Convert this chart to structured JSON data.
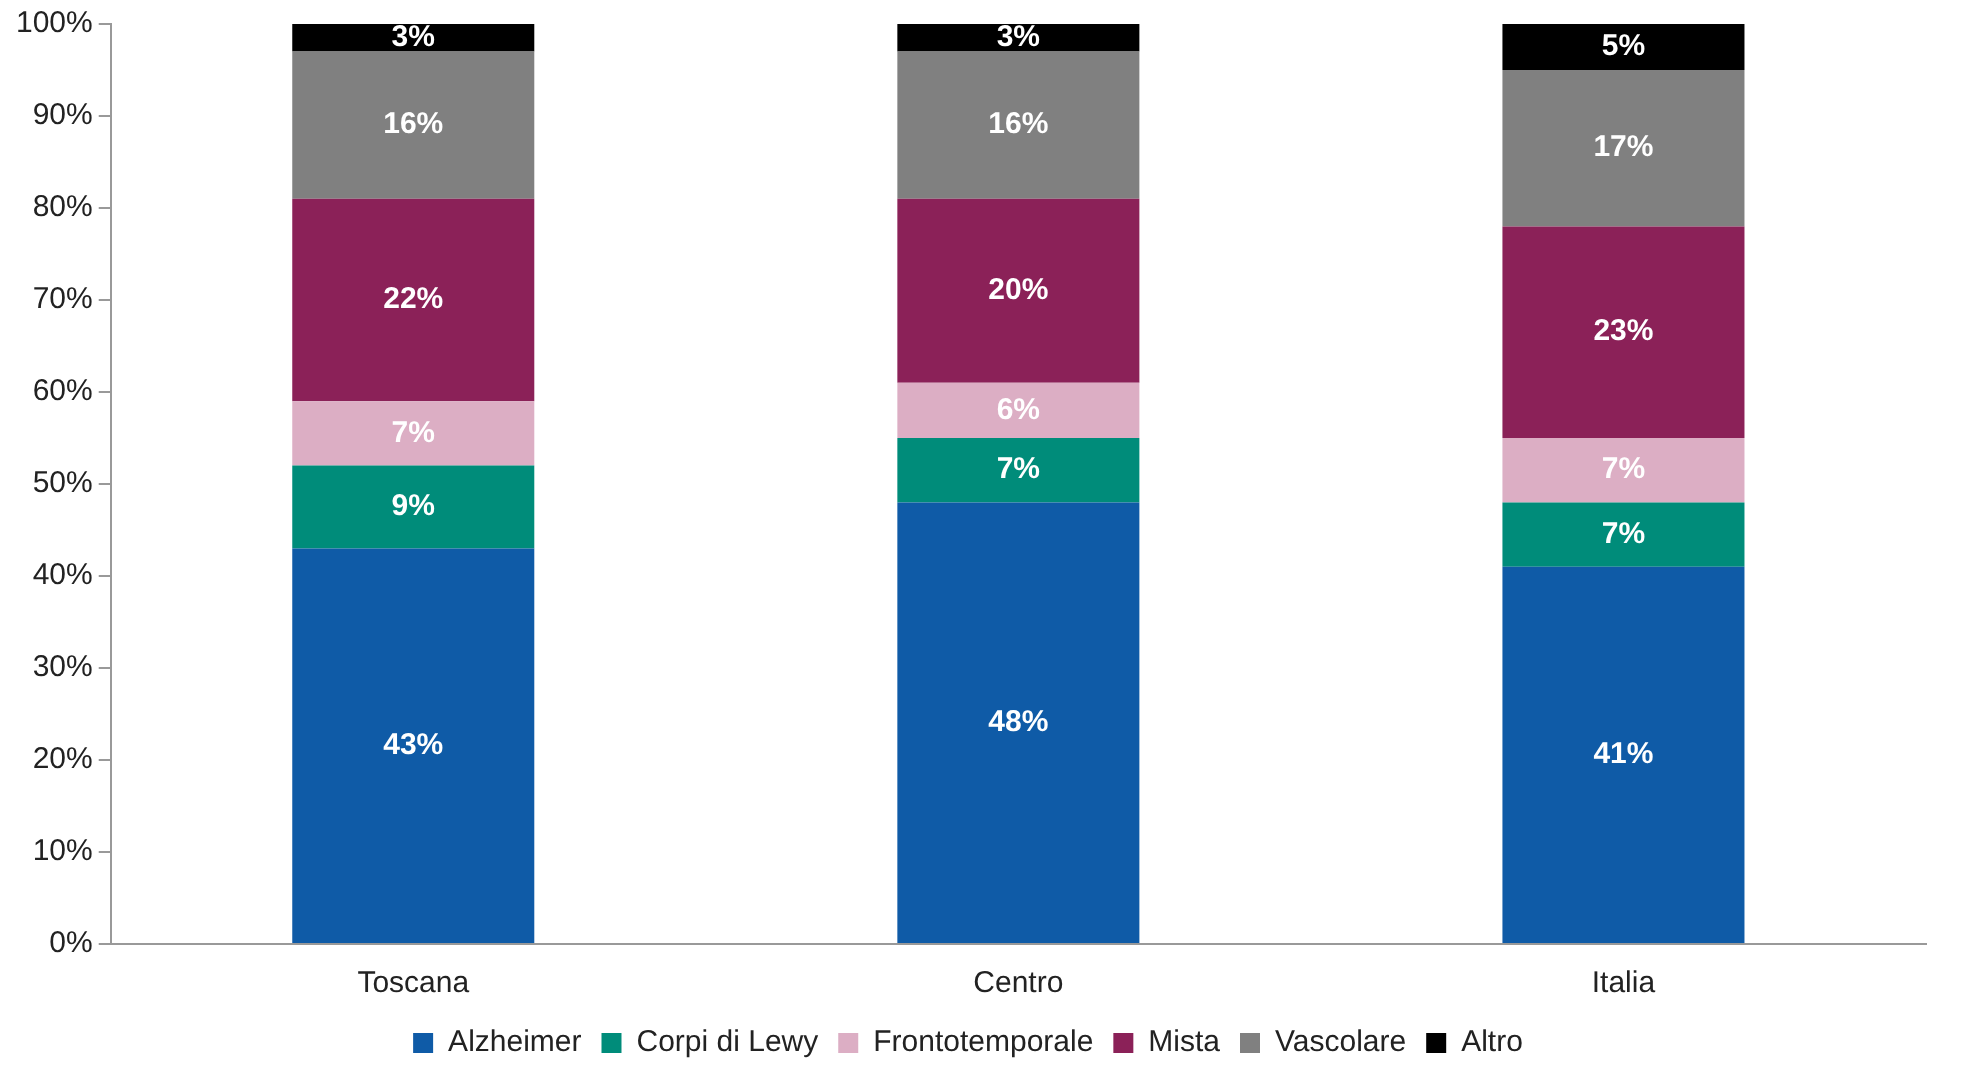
{
  "chart_data": {
    "type": "bar",
    "stacked": true,
    "categories": [
      "Toscana",
      "Centro",
      "Italia"
    ],
    "series": [
      {
        "name": "Alzheimer",
        "color": "#0f5ba7",
        "values": [
          43,
          48,
          41
        ],
        "value_labels": [
          "43%",
          "48%",
          "41%"
        ]
      },
      {
        "name": "Corpi di Lewy",
        "color": "#008c7a",
        "values": [
          9,
          7,
          7
        ],
        "value_labels": [
          "9%",
          "7%",
          "7%"
        ]
      },
      {
        "name": "Frontotemporale",
        "color": "#dcaec4",
        "values": [
          7,
          6,
          7
        ],
        "value_labels": [
          "7%",
          "6%",
          "7%"
        ]
      },
      {
        "name": "Mista",
        "color": "#8b2158",
        "values": [
          22,
          20,
          23
        ],
        "value_labels": [
          "22%",
          "20%",
          "23%"
        ]
      },
      {
        "name": "Vascolare",
        "color": "#808080",
        "values": [
          16,
          16,
          17
        ],
        "value_labels": [
          "16%",
          "16%",
          "17%"
        ]
      },
      {
        "name": "Altro",
        "color": "#000000",
        "values": [
          3,
          3,
          5
        ],
        "value_labels": [
          "3%",
          "3%",
          "5%"
        ]
      }
    ],
    "ylim": [
      0,
      100
    ],
    "yticks": [
      {
        "value": 0,
        "label": "0%"
      },
      {
        "value": 10,
        "label": "10%"
      },
      {
        "value": 20,
        "label": "20%"
      },
      {
        "value": 30,
        "label": "30%"
      },
      {
        "value": 40,
        "label": "40%"
      },
      {
        "value": 50,
        "label": "50%"
      },
      {
        "value": 60,
        "label": "60%"
      },
      {
        "value": 70,
        "label": "70%"
      },
      {
        "value": 80,
        "label": "80%"
      },
      {
        "value": 90,
        "label": "90%"
      },
      {
        "value": 100,
        "label": "100%"
      }
    ],
    "grid": false,
    "legend": "bottom"
  }
}
